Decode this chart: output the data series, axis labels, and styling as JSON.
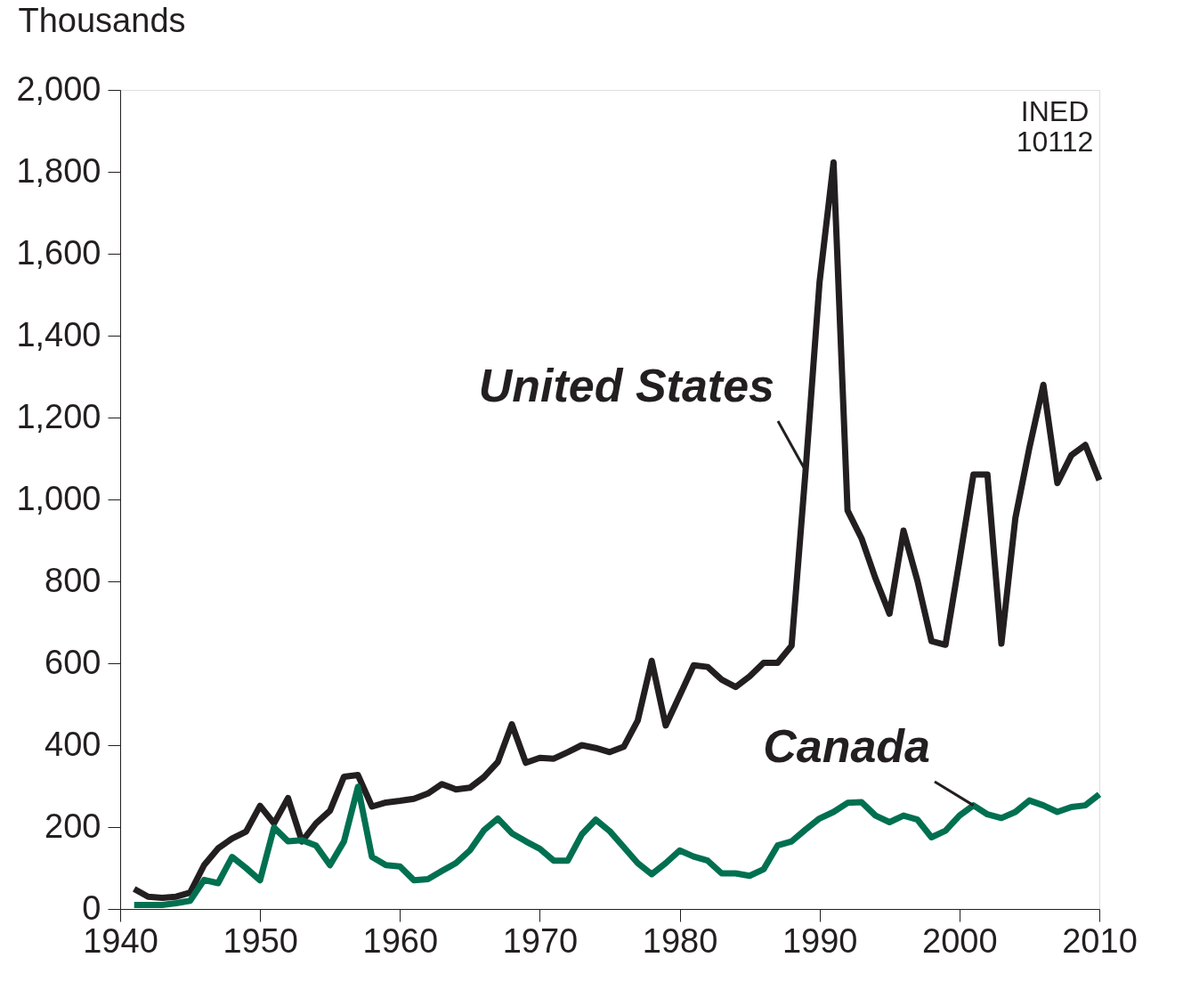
{
  "chart_data": {
    "type": "line",
    "ylabel": "Thousands",
    "x": [
      1941,
      1942,
      1943,
      1944,
      1945,
      1946,
      1947,
      1948,
      1949,
      1950,
      1951,
      1952,
      1953,
      1954,
      1955,
      1956,
      1957,
      1958,
      1959,
      1960,
      1961,
      1962,
      1963,
      1964,
      1965,
      1966,
      1967,
      1968,
      1969,
      1970,
      1971,
      1972,
      1973,
      1974,
      1975,
      1976,
      1977,
      1978,
      1979,
      1980,
      1981,
      1982,
      1983,
      1984,
      1985,
      1986,
      1987,
      1988,
      1989,
      1990,
      1991,
      1992,
      1993,
      1994,
      1995,
      1996,
      1997,
      1998,
      1999,
      2000,
      2001,
      2002,
      2003,
      2004,
      2005,
      2006,
      2007,
      2008,
      2009,
      2010
    ],
    "series": [
      {
        "name": "United States",
        "color": "#231f20",
        "values": [
          49,
          30,
          27,
          30,
          40,
          107,
          148,
          172,
          189,
          252,
          209,
          271,
          165,
          209,
          240,
          323,
          327,
          250,
          260,
          264,
          269,
          282,
          305,
          292,
          296,
          322,
          359,
          451,
          357,
          369,
          367,
          383,
          400,
          393,
          383,
          396,
          460,
          606,
          448,
          521,
          595,
          591,
          560,
          542,
          568,
          601,
          601,
          643,
          1070,
          1531,
          1823,
          973,
          905,
          807,
          721,
          924,
          801,
          654,
          645,
          850,
          1061,
          1061,
          648,
          955,
          1126,
          1280,
          1040,
          1108,
          1133,
          1047
        ]
      },
      {
        "name": "Canada",
        "color": "#007050",
        "values": [
          10,
          10,
          10,
          14,
          20,
          71,
          63,
          127,
          100,
          70,
          199,
          165,
          168,
          155,
          107,
          165,
          298,
          127,
          107,
          104,
          70,
          73,
          93,
          112,
          143,
          192,
          221,
          185,
          165,
          147,
          118,
          118,
          182,
          218,
          190,
          151,
          112,
          85,
          112,
          143,
          128,
          118,
          87,
          87,
          81,
          97,
          155,
          165,
          194,
          221,
          237,
          259,
          261,
          228,
          212,
          228,
          218,
          175,
          191,
          228,
          253,
          231,
          222,
          237,
          265,
          253,
          237,
          249,
          253,
          280
        ]
      }
    ],
    "xlim": [
      1940,
      2010
    ],
    "xticks": [
      1940,
      1950,
      1960,
      1970,
      1980,
      1990,
      2000,
      2010
    ],
    "ylim": [
      0,
      2000
    ],
    "yticks": [
      {
        "value": 0,
        "label": "0"
      },
      {
        "value": 200,
        "label": "200"
      },
      {
        "value": 400,
        "label": "400"
      },
      {
        "value": 600,
        "label": "600"
      },
      {
        "value": 800,
        "label": "800"
      },
      {
        "value": 1000,
        "label": "1,000"
      },
      {
        "value": 1200,
        "label": "1,200"
      },
      {
        "value": 1400,
        "label": "1,400"
      },
      {
        "value": 1600,
        "label": "1,600"
      },
      {
        "value": 1800,
        "label": "1,800"
      },
      {
        "value": 2000,
        "label": "2,000"
      }
    ],
    "annotations": [
      "INED\n10112"
    ],
    "grid": false,
    "marker": "none",
    "line_style": "solid"
  }
}
